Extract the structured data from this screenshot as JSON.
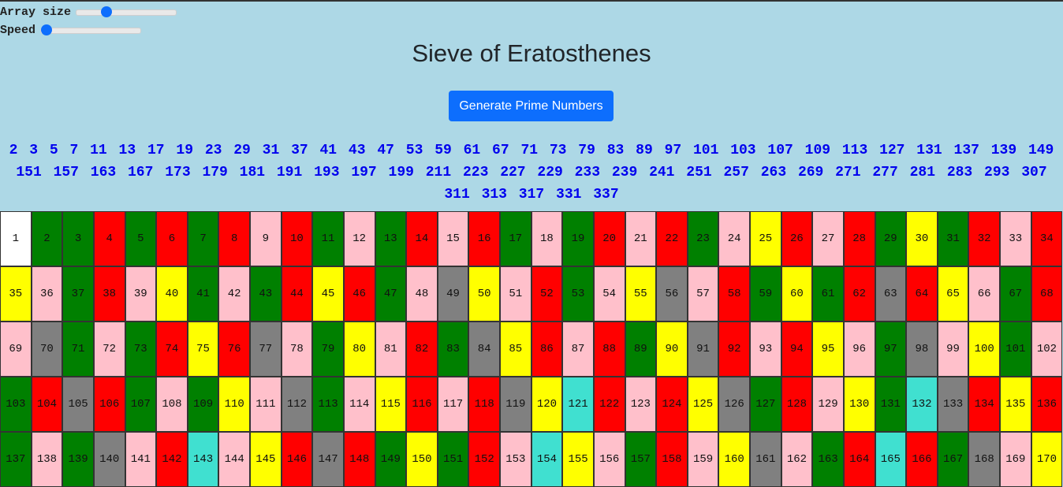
{
  "controls": {
    "array_size_label": "Array size",
    "array_size_fraction": 0.28,
    "speed_label": "Speed",
    "speed_fraction": 0.0
  },
  "title": "Sieve of Eratosthenes",
  "generate_button": "Generate Prime Numbers",
  "colors": {
    "background": "#add8e6",
    "button": "#0d6efd",
    "primes_text": "#0000ee",
    "one": "#ffffff",
    "prime": "#008000",
    "even": "#ff0000",
    "multiple_of_3": "#ffc0cb",
    "multiple_of_5": "#ffff00",
    "multiple_of_7": "#808080",
    "multiple_of_11": "#40e0d0"
  },
  "primes": [
    2,
    3,
    5,
    7,
    11,
    13,
    17,
    19,
    23,
    29,
    31,
    37,
    41,
    43,
    47,
    53,
    59,
    61,
    67,
    71,
    73,
    79,
    83,
    89,
    97,
    101,
    103,
    107,
    109,
    113,
    127,
    131,
    137,
    139,
    149,
    151,
    157,
    163,
    167,
    173,
    179,
    181,
    191,
    193,
    197,
    199,
    211,
    223,
    227,
    229,
    233,
    239,
    241,
    251,
    257,
    263,
    269,
    271,
    277,
    281,
    283,
    293,
    307,
    311,
    313,
    317,
    331,
    337
  ],
  "cells": [
    {
      "n": 1,
      "c": "one"
    },
    {
      "n": 2,
      "c": "prime"
    },
    {
      "n": 3,
      "c": "prime"
    },
    {
      "n": 4,
      "c": "even"
    },
    {
      "n": 5,
      "c": "prime"
    },
    {
      "n": 6,
      "c": "even"
    },
    {
      "n": 7,
      "c": "prime"
    },
    {
      "n": 8,
      "c": "even"
    },
    {
      "n": 9,
      "c": "multiple_of_3"
    },
    {
      "n": 10,
      "c": "even"
    },
    {
      "n": 11,
      "c": "prime"
    },
    {
      "n": 12,
      "c": "multiple_of_3"
    },
    {
      "n": 13,
      "c": "prime"
    },
    {
      "n": 14,
      "c": "even"
    },
    {
      "n": 15,
      "c": "multiple_of_3"
    },
    {
      "n": 16,
      "c": "even"
    },
    {
      "n": 17,
      "c": "prime"
    },
    {
      "n": 18,
      "c": "multiple_of_3"
    },
    {
      "n": 19,
      "c": "prime"
    },
    {
      "n": 20,
      "c": "even"
    },
    {
      "n": 21,
      "c": "multiple_of_3"
    },
    {
      "n": 22,
      "c": "even"
    },
    {
      "n": 23,
      "c": "prime"
    },
    {
      "n": 24,
      "c": "multiple_of_3"
    },
    {
      "n": 25,
      "c": "multiple_of_5"
    },
    {
      "n": 26,
      "c": "even"
    },
    {
      "n": 27,
      "c": "multiple_of_3"
    },
    {
      "n": 28,
      "c": "even"
    },
    {
      "n": 29,
      "c": "prime"
    },
    {
      "n": 30,
      "c": "multiple_of_5"
    },
    {
      "n": 31,
      "c": "prime"
    },
    {
      "n": 32,
      "c": "even"
    },
    {
      "n": 33,
      "c": "multiple_of_3"
    },
    {
      "n": 34,
      "c": "even"
    },
    {
      "n": 35,
      "c": "multiple_of_5"
    },
    {
      "n": 36,
      "c": "multiple_of_3"
    },
    {
      "n": 37,
      "c": "prime"
    },
    {
      "n": 38,
      "c": "even"
    },
    {
      "n": 39,
      "c": "multiple_of_3"
    },
    {
      "n": 40,
      "c": "multiple_of_5"
    },
    {
      "n": 41,
      "c": "prime"
    },
    {
      "n": 42,
      "c": "multiple_of_3"
    },
    {
      "n": 43,
      "c": "prime"
    },
    {
      "n": 44,
      "c": "even"
    },
    {
      "n": 45,
      "c": "multiple_of_5"
    },
    {
      "n": 46,
      "c": "even"
    },
    {
      "n": 47,
      "c": "prime"
    },
    {
      "n": 48,
      "c": "multiple_of_3"
    },
    {
      "n": 49,
      "c": "multiple_of_7"
    },
    {
      "n": 50,
      "c": "multiple_of_5"
    },
    {
      "n": 51,
      "c": "multiple_of_3"
    },
    {
      "n": 52,
      "c": "even"
    },
    {
      "n": 53,
      "c": "prime"
    },
    {
      "n": 54,
      "c": "multiple_of_3"
    },
    {
      "n": 55,
      "c": "multiple_of_5"
    },
    {
      "n": 56,
      "c": "multiple_of_7"
    },
    {
      "n": 57,
      "c": "multiple_of_3"
    },
    {
      "n": 58,
      "c": "even"
    },
    {
      "n": 59,
      "c": "prime"
    },
    {
      "n": 60,
      "c": "multiple_of_5"
    },
    {
      "n": 61,
      "c": "prime"
    },
    {
      "n": 62,
      "c": "even"
    },
    {
      "n": 63,
      "c": "multiple_of_7"
    },
    {
      "n": 64,
      "c": "even"
    },
    {
      "n": 65,
      "c": "multiple_of_5"
    },
    {
      "n": 66,
      "c": "multiple_of_3"
    },
    {
      "n": 67,
      "c": "prime"
    },
    {
      "n": 68,
      "c": "even"
    },
    {
      "n": 69,
      "c": "multiple_of_3"
    },
    {
      "n": 70,
      "c": "multiple_of_7"
    },
    {
      "n": 71,
      "c": "prime"
    },
    {
      "n": 72,
      "c": "multiple_of_3"
    },
    {
      "n": 73,
      "c": "prime"
    },
    {
      "n": 74,
      "c": "even"
    },
    {
      "n": 75,
      "c": "multiple_of_5"
    },
    {
      "n": 76,
      "c": "even"
    },
    {
      "n": 77,
      "c": "multiple_of_7"
    },
    {
      "n": 78,
      "c": "multiple_of_3"
    },
    {
      "n": 79,
      "c": "prime"
    },
    {
      "n": 80,
      "c": "multiple_of_5"
    },
    {
      "n": 81,
      "c": "multiple_of_3"
    },
    {
      "n": 82,
      "c": "even"
    },
    {
      "n": 83,
      "c": "prime"
    },
    {
      "n": 84,
      "c": "multiple_of_7"
    },
    {
      "n": 85,
      "c": "multiple_of_5"
    },
    {
      "n": 86,
      "c": "even"
    },
    {
      "n": 87,
      "c": "multiple_of_3"
    },
    {
      "n": 88,
      "c": "even"
    },
    {
      "n": 89,
      "c": "prime"
    },
    {
      "n": 90,
      "c": "multiple_of_5"
    },
    {
      "n": 91,
      "c": "multiple_of_7"
    },
    {
      "n": 92,
      "c": "even"
    },
    {
      "n": 93,
      "c": "multiple_of_3"
    },
    {
      "n": 94,
      "c": "even"
    },
    {
      "n": 95,
      "c": "multiple_of_5"
    },
    {
      "n": 96,
      "c": "multiple_of_3"
    },
    {
      "n": 97,
      "c": "prime"
    },
    {
      "n": 98,
      "c": "multiple_of_7"
    },
    {
      "n": 99,
      "c": "multiple_of_3"
    },
    {
      "n": 100,
      "c": "multiple_of_5"
    },
    {
      "n": 101,
      "c": "prime"
    },
    {
      "n": 102,
      "c": "multiple_of_3"
    },
    {
      "n": 103,
      "c": "prime"
    },
    {
      "n": 104,
      "c": "even"
    },
    {
      "n": 105,
      "c": "multiple_of_7"
    },
    {
      "n": 106,
      "c": "even"
    },
    {
      "n": 107,
      "c": "prime"
    },
    {
      "n": 108,
      "c": "multiple_of_3"
    },
    {
      "n": 109,
      "c": "prime"
    },
    {
      "n": 110,
      "c": "multiple_of_5"
    },
    {
      "n": 111,
      "c": "multiple_of_3"
    },
    {
      "n": 112,
      "c": "multiple_of_7"
    },
    {
      "n": 113,
      "c": "prime"
    },
    {
      "n": 114,
      "c": "multiple_of_3"
    },
    {
      "n": 115,
      "c": "multiple_of_5"
    },
    {
      "n": 116,
      "c": "even"
    },
    {
      "n": 117,
      "c": "multiple_of_3"
    },
    {
      "n": 118,
      "c": "even"
    },
    {
      "n": 119,
      "c": "multiple_of_7"
    },
    {
      "n": 120,
      "c": "multiple_of_5"
    },
    {
      "n": 121,
      "c": "multiple_of_11"
    },
    {
      "n": 122,
      "c": "even"
    },
    {
      "n": 123,
      "c": "multiple_of_3"
    },
    {
      "n": 124,
      "c": "even"
    },
    {
      "n": 125,
      "c": "multiple_of_5"
    },
    {
      "n": 126,
      "c": "multiple_of_7"
    },
    {
      "n": 127,
      "c": "prime"
    },
    {
      "n": 128,
      "c": "even"
    },
    {
      "n": 129,
      "c": "multiple_of_3"
    },
    {
      "n": 130,
      "c": "multiple_of_5"
    },
    {
      "n": 131,
      "c": "prime"
    },
    {
      "n": 132,
      "c": "multiple_of_11"
    },
    {
      "n": 133,
      "c": "multiple_of_7"
    },
    {
      "n": 134,
      "c": "even"
    },
    {
      "n": 135,
      "c": "multiple_of_5"
    },
    {
      "n": 136,
      "c": "even"
    },
    {
      "n": 137,
      "c": "prime"
    },
    {
      "n": 138,
      "c": "multiple_of_3"
    },
    {
      "n": 139,
      "c": "prime"
    },
    {
      "n": 140,
      "c": "multiple_of_7"
    },
    {
      "n": 141,
      "c": "multiple_of_3"
    },
    {
      "n": 142,
      "c": "even"
    },
    {
      "n": 143,
      "c": "multiple_of_11"
    },
    {
      "n": 144,
      "c": "multiple_of_3"
    },
    {
      "n": 145,
      "c": "multiple_of_5"
    },
    {
      "n": 146,
      "c": "even"
    },
    {
      "n": 147,
      "c": "multiple_of_7"
    },
    {
      "n": 148,
      "c": "even"
    },
    {
      "n": 149,
      "c": "prime"
    },
    {
      "n": 150,
      "c": "multiple_of_5"
    },
    {
      "n": 151,
      "c": "prime"
    },
    {
      "n": 152,
      "c": "even"
    },
    {
      "n": 153,
      "c": "multiple_of_3"
    },
    {
      "n": 154,
      "c": "multiple_of_11"
    },
    {
      "n": 155,
      "c": "multiple_of_5"
    },
    {
      "n": 156,
      "c": "multiple_of_3"
    },
    {
      "n": 157,
      "c": "prime"
    },
    {
      "n": 158,
      "c": "even"
    },
    {
      "n": 159,
      "c": "multiple_of_3"
    },
    {
      "n": 160,
      "c": "multiple_of_5"
    },
    {
      "n": 161,
      "c": "multiple_of_7"
    },
    {
      "n": 162,
      "c": "multiple_of_3"
    },
    {
      "n": 163,
      "c": "prime"
    },
    {
      "n": 164,
      "c": "even"
    },
    {
      "n": 165,
      "c": "multiple_of_11"
    },
    {
      "n": 166,
      "c": "even"
    },
    {
      "n": 167,
      "c": "prime"
    },
    {
      "n": 168,
      "c": "multiple_of_7"
    },
    {
      "n": 169,
      "c": "multiple_of_3"
    },
    {
      "n": 170,
      "c": "multiple_of_5"
    }
  ]
}
